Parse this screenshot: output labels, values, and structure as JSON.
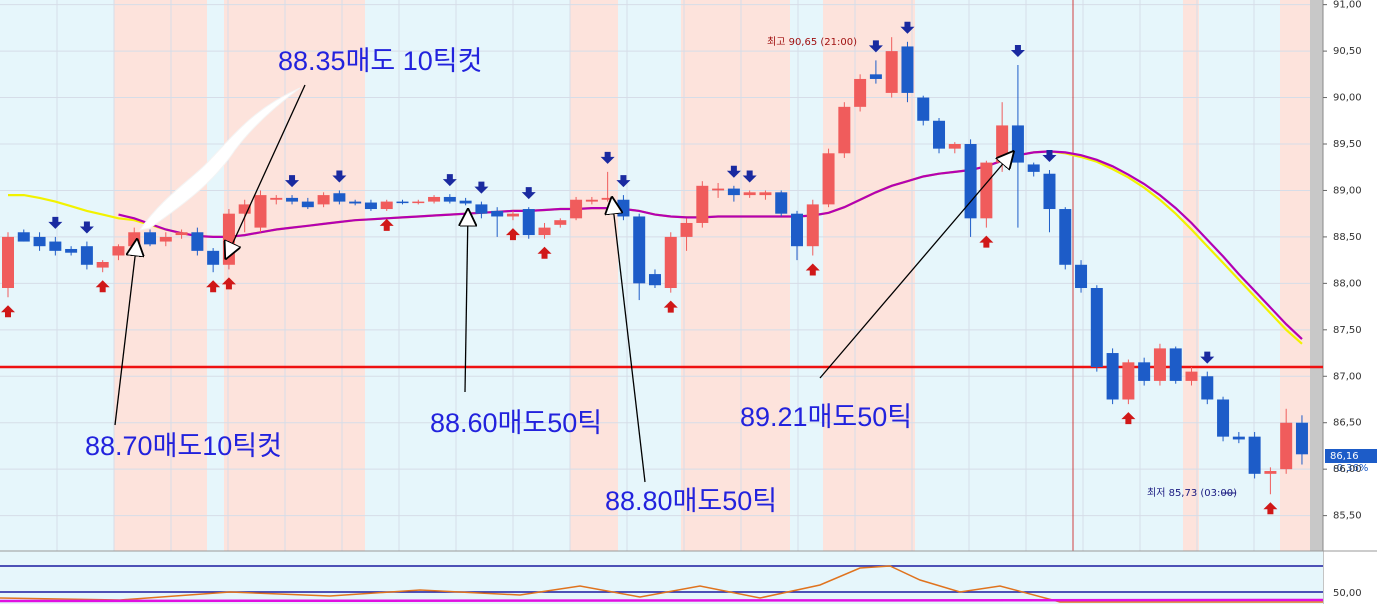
{
  "chart_data": {
    "type": "candlestick",
    "open": [
      87.95,
      88.55,
      88.5,
      88.45,
      88.37,
      88.4,
      88.17,
      88.3,
      88.4,
      88.55,
      88.45,
      88.52,
      88.55,
      88.35,
      88.2,
      88.75,
      88.6,
      88.9,
      88.92,
      88.88,
      88.85,
      88.97,
      88.88,
      88.87,
      88.8,
      88.88,
      88.87,
      88.88,
      88.93,
      88.89,
      88.85,
      88.78,
      88.72,
      88.8,
      88.52,
      88.63,
      88.7,
      88.88,
      88.9,
      88.9,
      88.72,
      88.1,
      87.95,
      88.5,
      88.65,
      89.0,
      89.02,
      88.95,
      88.95,
      88.98,
      88.75,
      88.4,
      88.85,
      89.4,
      89.9,
      90.25,
      90.05,
      90.55,
      90.0,
      89.75,
      89.45,
      89.5,
      88.7,
      89.3,
      89.7,
      89.28,
      89.18,
      88.8,
      88.2,
      87.95,
      87.25,
      86.75,
      87.15,
      86.95,
      87.3,
      86.95,
      87.0,
      86.75,
      86.35,
      86.35,
      85.95,
      86.0,
      86.5
    ],
    "high": [
      88.55,
      88.58,
      88.55,
      88.5,
      88.4,
      88.45,
      88.25,
      88.42,
      88.6,
      88.58,
      88.55,
      88.58,
      88.6,
      88.38,
      88.8,
      88.9,
      89.0,
      88.95,
      88.95,
      88.92,
      88.98,
      89.0,
      88.9,
      88.9,
      88.9,
      88.9,
      88.9,
      88.95,
      88.96,
      88.92,
      88.88,
      88.82,
      88.78,
      88.82,
      88.65,
      88.7,
      88.93,
      88.93,
      89.2,
      88.95,
      88.75,
      88.15,
      88.55,
      88.7,
      89.1,
      89.08,
      89.05,
      89.0,
      89.0,
      89.0,
      88.78,
      88.9,
      89.45,
      89.95,
      90.25,
      90.4,
      90.65,
      90.6,
      90.02,
      89.78,
      89.52,
      89.55,
      89.32,
      89.95,
      90.35,
      89.3,
      89.22,
      88.82,
      88.25,
      87.98,
      87.3,
      87.18,
      87.2,
      87.35,
      87.32,
      87.1,
      87.05,
      86.78,
      86.4,
      86.4,
      86.02,
      86.65,
      86.58
    ],
    "low": [
      87.85,
      88.45,
      88.35,
      88.3,
      88.3,
      88.15,
      88.12,
      88.25,
      88.35,
      88.4,
      88.4,
      88.48,
      88.3,
      88.12,
      88.15,
      88.55,
      88.55,
      88.85,
      88.85,
      88.8,
      88.82,
      88.85,
      88.84,
      88.78,
      88.78,
      88.85,
      88.85,
      88.86,
      88.86,
      88.84,
      88.7,
      88.5,
      88.68,
      88.48,
      88.48,
      88.6,
      88.68,
      88.85,
      88.88,
      88.68,
      87.82,
      87.95,
      87.9,
      88.35,
      88.6,
      88.92,
      88.88,
      88.92,
      88.9,
      88.72,
      88.25,
      88.3,
      88.82,
      89.35,
      89.85,
      90.15,
      90.0,
      89.95,
      89.7,
      89.4,
      89.4,
      88.5,
      88.6,
      89.2,
      88.6,
      89.15,
      88.55,
      88.15,
      87.9,
      87.05,
      86.7,
      86.7,
      86.9,
      86.9,
      86.92,
      86.9,
      86.7,
      86.3,
      86.28,
      85.9,
      85.73,
      85.95,
      86.05
    ],
    "close": [
      88.5,
      88.45,
      88.4,
      88.35,
      88.33,
      88.2,
      88.23,
      88.4,
      88.55,
      88.42,
      88.5,
      88.55,
      88.35,
      88.2,
      88.75,
      88.85,
      88.95,
      88.92,
      88.88,
      88.82,
      88.95,
      88.88,
      88.86,
      88.8,
      88.88,
      88.87,
      88.88,
      88.93,
      88.88,
      88.86,
      88.75,
      88.72,
      88.75,
      88.52,
      88.6,
      88.68,
      88.9,
      88.9,
      88.92,
      88.72,
      88.0,
      87.98,
      88.5,
      88.65,
      89.05,
      89.02,
      88.95,
      88.98,
      88.98,
      88.75,
      88.4,
      88.85,
      89.4,
      89.9,
      90.2,
      90.2,
      90.5,
      90.05,
      89.75,
      89.45,
      89.5,
      88.7,
      89.3,
      89.7,
      89.3,
      89.2,
      88.8,
      88.2,
      87.95,
      87.1,
      86.75,
      87.15,
      86.95,
      87.3,
      86.95,
      87.05,
      86.75,
      86.35,
      86.32,
      85.95,
      85.98,
      86.5,
      86.16
    ],
    "up_color": "#f05c5c",
    "down_color": "#1d5cc8",
    "lines": [
      {
        "color": "#f2f200",
        "values": [
          88.95,
          88.95,
          88.92,
          88.88,
          88.83,
          88.78,
          88.74,
          88.7,
          88.68,
          88.63,
          88.58,
          88.54,
          88.51,
          88.5,
          88.5,
          88.52,
          88.55,
          88.58,
          88.6,
          88.62,
          88.64,
          88.66,
          88.68,
          88.69,
          88.7,
          88.71,
          88.72,
          88.73,
          88.74,
          88.75,
          88.76,
          88.77,
          88.78,
          88.78,
          88.79,
          88.8,
          88.8,
          88.81,
          88.81,
          88.8,
          88.78,
          88.74,
          88.72,
          88.71,
          88.71,
          88.72,
          88.72,
          88.72,
          88.72,
          88.72,
          88.72,
          88.73,
          88.76,
          88.82,
          88.9,
          88.98,
          89.05,
          89.1,
          89.15,
          89.18,
          89.2,
          89.22,
          89.26,
          89.32,
          89.38,
          89.41,
          89.42,
          89.4,
          89.36,
          89.31,
          89.23,
          89.14,
          89.03,
          88.9,
          88.75,
          88.58,
          88.4,
          88.22,
          88.04,
          87.86,
          87.68,
          87.5,
          87.35
        ]
      },
      {
        "color": "#b400b4",
        "values": [
          null,
          null,
          null,
          null,
          null,
          null,
          null,
          88.74,
          88.7,
          88.64,
          88.58,
          88.54,
          88.51,
          88.5,
          88.5,
          88.52,
          88.55,
          88.58,
          88.6,
          88.62,
          88.64,
          88.66,
          88.68,
          88.69,
          88.7,
          88.71,
          88.72,
          88.73,
          88.74,
          88.75,
          88.76,
          88.77,
          88.78,
          88.78,
          88.79,
          88.8,
          88.8,
          88.81,
          88.81,
          88.8,
          88.78,
          88.74,
          88.72,
          88.71,
          88.71,
          88.72,
          88.72,
          88.72,
          88.72,
          88.72,
          88.72,
          88.73,
          88.76,
          88.82,
          88.9,
          88.98,
          89.05,
          89.1,
          89.15,
          89.18,
          89.2,
          89.22,
          89.26,
          89.32,
          89.38,
          89.41,
          89.42,
          89.41,
          89.38,
          89.33,
          89.26,
          89.17,
          89.07,
          88.95,
          88.81,
          88.65,
          88.47,
          88.29,
          88.1,
          87.92,
          87.74,
          87.56,
          87.4
        ]
      }
    ],
    "hline": {
      "value": 87.1,
      "color": "#ee1111"
    },
    "ylim": [
      85.13,
      91.05
    ],
    "yticks": [
      {
        "value": 91,
        "label": "91,00"
      },
      {
        "value": 90.5,
        "label": "90,50"
      },
      {
        "value": 90,
        "label": "90,00"
      },
      {
        "value": 89.5,
        "label": "89,50"
      },
      {
        "value": 89,
        "label": "89,00"
      },
      {
        "value": 88.5,
        "label": "88,50"
      },
      {
        "value": 88,
        "label": "88,00"
      },
      {
        "value": 87.5,
        "label": "87,50"
      },
      {
        "value": 87,
        "label": "87,00"
      },
      {
        "value": 86.5,
        "label": "86,50"
      },
      {
        "value": 86,
        "label": "86,00"
      },
      {
        "value": 85.5,
        "label": "85,50"
      }
    ],
    "grid": true,
    "last_label": "86,16",
    "change_label": "-0,36%",
    "high_label": "최고 90,65 (21:00)",
    "low_label": "최저 85,73 (03:00)",
    "indicator_label": "50,00",
    "annotations": [
      "88.35매도 10틱컷",
      "88.70매도10틱컷",
      "88.60매도50틱",
      "88.80매도50틱",
      "89.21매도50틱"
    ]
  }
}
